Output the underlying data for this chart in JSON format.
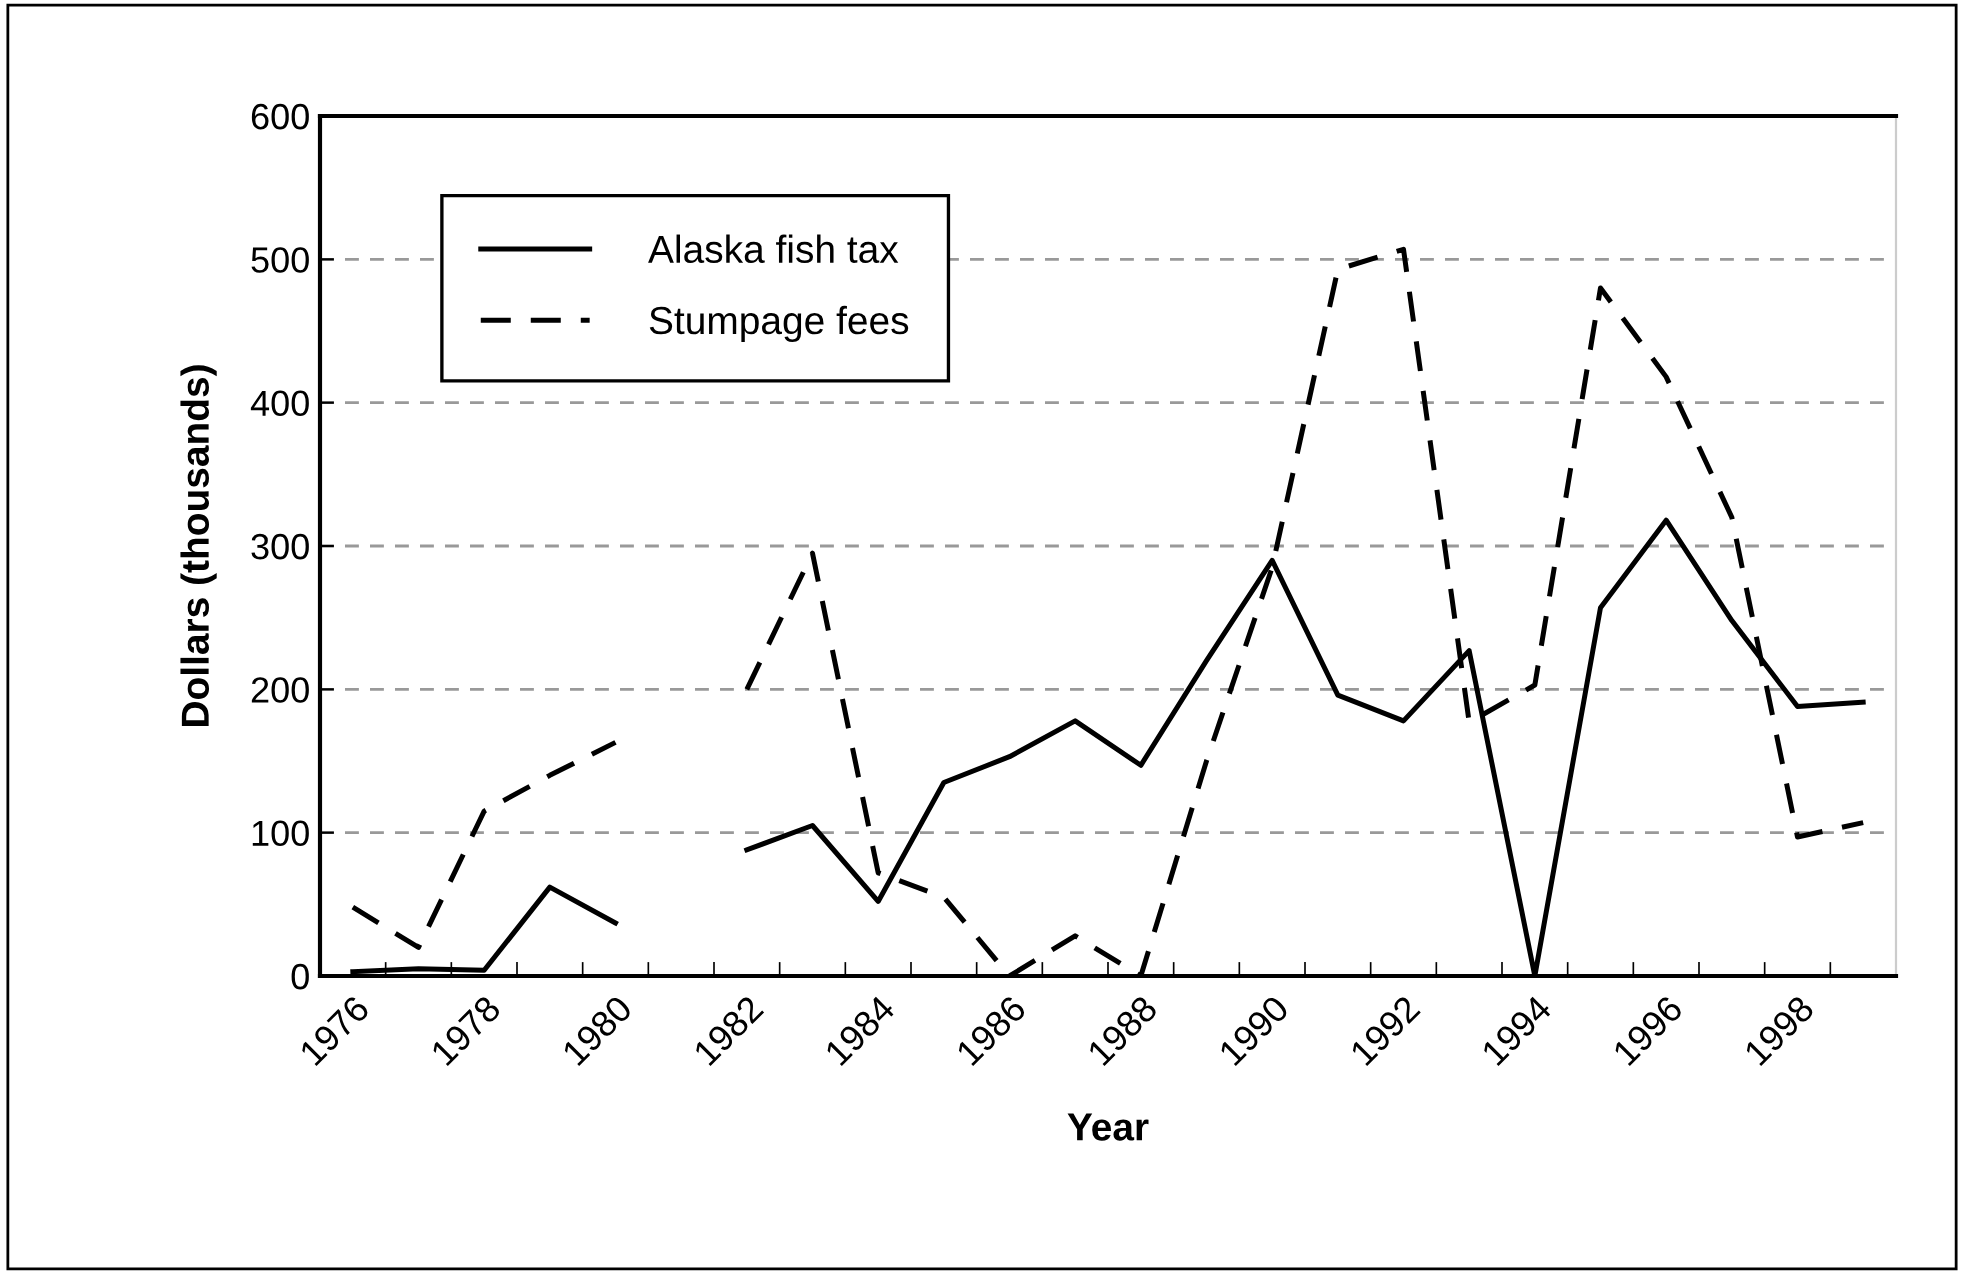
{
  "chart_data": {
    "type": "line",
    "xlabel": "Year",
    "ylabel": "Dollars (thousands)",
    "categories": [
      "1976",
      null,
      "1978",
      null,
      "1980",
      null,
      "1982",
      null,
      "1984",
      null,
      "1986",
      null,
      "1988",
      null,
      "1990",
      null,
      "1992",
      null,
      "1994",
      null,
      "1996",
      null,
      "1998",
      null
    ],
    "series": [
      {
        "name": "Alaska fish tax",
        "color": "#000000",
        "line_style": "solid",
        "values": [
          3,
          5,
          4,
          62,
          37,
          null,
          88,
          105,
          52,
          135,
          153,
          178,
          147,
          220,
          290,
          196,
          178,
          227,
          0,
          257,
          318,
          248,
          188,
          191
        ]
      },
      {
        "name": "Stumpage fees",
        "color": "#000000",
        "line_style": "dashed",
        "values": [
          48,
          20,
          115,
          140,
          163,
          null,
          200,
          295,
          72,
          55,
          0,
          28,
          0,
          150,
          285,
          493,
          507,
          177,
          203,
          480,
          418,
          320,
          97,
          107
        ]
      }
    ],
    "ylim": [
      0,
      600
    ],
    "yticks": [
      0,
      100,
      200,
      300,
      400,
      500,
      600
    ],
    "grid": "y",
    "legend": "top left",
    "marker": "none"
  }
}
